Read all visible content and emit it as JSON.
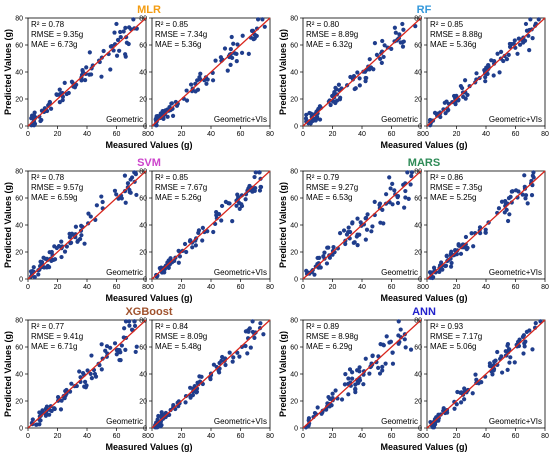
{
  "colors": {
    "point": "#1f3d8c",
    "fit_line": "#d9261c",
    "title_MLR": "#f39c12",
    "title_RF": "#3498db",
    "title_SVM": "#cc44cc",
    "title_MARS": "#2e8b57",
    "title_XGBoost": "#a0522d",
    "title_ANN": "#2222cc"
  },
  "chart_data": [
    {
      "type": "scatter",
      "model": "MLR",
      "title": "MLR",
      "variant": "Geometric",
      "r2_label": "R² = 0.78",
      "rmse_label": "RMSE = 9.35g",
      "mae_label": "MAE = 6.73g",
      "xlabel": "Measured Values (g)",
      "ylabel": "Predicted Values (g)",
      "xlim": [
        0,
        80
      ],
      "ylim": [
        0,
        80
      ],
      "xticks": [
        0,
        20,
        40,
        60,
        80
      ],
      "yticks": [
        0,
        20,
        40,
        60,
        80
      ],
      "seed": 11
    },
    {
      "type": "scatter",
      "model": "MLR",
      "title": "",
      "variant": "Geometric+VIs",
      "r2_label": "R² = 0.85",
      "rmse_label": "RMSE = 7.34g",
      "mae_label": "MAE = 5.36g",
      "xlabel": "",
      "ylabel": "",
      "xlim": [
        0,
        80
      ],
      "ylim": [
        0,
        80
      ],
      "xticks": [
        0,
        20,
        40,
        60,
        80
      ],
      "yticks": [
        0,
        20,
        40,
        60,
        80
      ],
      "seed": 12
    },
    {
      "type": "scatter",
      "model": "RF",
      "title": "RF",
      "variant": "Geometric",
      "r2_label": "R² = 0.80",
      "rmse_label": "RMSE = 8.89g",
      "mae_label": "MAE = 6.32g",
      "xlabel": "Measured Values (g)",
      "ylabel": "Predicted Values (g)",
      "xlim": [
        0,
        80
      ],
      "ylim": [
        0,
        80
      ],
      "xticks": [
        0,
        20,
        40,
        60,
        80
      ],
      "yticks": [
        0,
        20,
        40,
        60,
        80
      ],
      "seed": 21
    },
    {
      "type": "scatter",
      "model": "RF",
      "title": "",
      "variant": "Geometric+VIs",
      "r2_label": "R² = 0.85",
      "rmse_label": "RMSE = 8.88g",
      "mae_label": "MAE = 5.36g",
      "xlabel": "",
      "ylabel": "",
      "xlim": [
        0,
        80
      ],
      "ylim": [
        0,
        80
      ],
      "xticks": [
        0,
        20,
        40,
        60,
        80
      ],
      "yticks": [
        0,
        20,
        40,
        60,
        80
      ],
      "seed": 22
    },
    {
      "type": "scatter",
      "model": "SVM",
      "title": "SVM",
      "variant": "Geometric",
      "r2_label": "R² = 0.78",
      "rmse_label": "RMSE = 9.57g",
      "mae_label": "MAE = 6.59g",
      "xlabel": "Measured Values (g)",
      "ylabel": "Predicted Values (g)",
      "xlim": [
        0,
        80
      ],
      "ylim": [
        0,
        80
      ],
      "xticks": [
        0,
        20,
        40,
        60,
        80
      ],
      "yticks": [
        0,
        20,
        40,
        60,
        80
      ],
      "seed": 31
    },
    {
      "type": "scatter",
      "model": "SVM",
      "title": "",
      "variant": "Geometric+VIs",
      "r2_label": "R² = 0.85",
      "rmse_label": "RMSE = 7.67g",
      "mae_label": "MAE = 5.26g",
      "xlabel": "",
      "ylabel": "",
      "xlim": [
        0,
        80
      ],
      "ylim": [
        0,
        80
      ],
      "xticks": [
        0,
        20,
        40,
        60,
        80
      ],
      "yticks": [
        0,
        20,
        40,
        60,
        80
      ],
      "seed": 32
    },
    {
      "type": "scatter",
      "model": "MARS",
      "title": "MARS",
      "variant": "Geometric",
      "r2_label": "R² = 0.79",
      "rmse_label": "RMSE = 9.27g",
      "mae_label": "MAE = 6.53g",
      "xlabel": "Measured Values (g)",
      "ylabel": "Predicted Values (g)",
      "xlim": [
        0,
        80
      ],
      "ylim": [
        0,
        80
      ],
      "xticks": [
        0,
        20,
        40,
        60,
        80
      ],
      "yticks": [
        0,
        20,
        40,
        60,
        80
      ],
      "seed": 41
    },
    {
      "type": "scatter",
      "model": "MARS",
      "title": "",
      "variant": "Geometric+VIs",
      "r2_label": "R² = 0.86",
      "rmse_label": "RMSE = 7.35g",
      "mae_label": "MAE = 5.25g",
      "xlabel": "",
      "ylabel": "",
      "xlim": [
        0,
        80
      ],
      "ylim": [
        0,
        80
      ],
      "xticks": [
        0,
        20,
        40,
        60,
        80
      ],
      "yticks": [
        0,
        20,
        40,
        60,
        80
      ],
      "seed": 42
    },
    {
      "type": "scatter",
      "model": "XGBoost",
      "title": "XGBoost",
      "variant": "Geometric",
      "r2_label": "R² = 0.77",
      "rmse_label": "RMSE = 9.41g",
      "mae_label": "MAE = 6.71g",
      "xlabel": "Measured Values (g)",
      "ylabel": "Predicted Values (g)",
      "xlim": [
        0,
        80
      ],
      "ylim": [
        0,
        80
      ],
      "xticks": [
        0,
        20,
        40,
        60,
        80
      ],
      "yticks": [
        0,
        20,
        40,
        60,
        80
      ],
      "seed": 51
    },
    {
      "type": "scatter",
      "model": "XGBoost",
      "title": "",
      "variant": "Geometric+VIs",
      "r2_label": "R² = 0.84",
      "rmse_label": "RMSE = 8.09g",
      "mae_label": "MAE = 5.48g",
      "xlabel": "",
      "ylabel": "",
      "xlim": [
        0,
        80
      ],
      "ylim": [
        0,
        80
      ],
      "xticks": [
        0,
        20,
        40,
        60,
        80
      ],
      "yticks": [
        0,
        20,
        40,
        60,
        80
      ],
      "seed": 52
    },
    {
      "type": "scatter",
      "model": "ANN",
      "title": "ANN",
      "variant": "Geometric",
      "r2_label": "R² = 0.89",
      "rmse_label": "RMSE = 8.98g",
      "mae_label": "MAE = 6.29g",
      "xlabel": "Measured Values (g)",
      "ylabel": "Predicted Values (g)",
      "xlim": [
        0,
        80
      ],
      "ylim": [
        0,
        80
      ],
      "xticks": [
        0,
        20,
        40,
        60,
        80
      ],
      "yticks": [
        0,
        20,
        40,
        60,
        80
      ],
      "seed": 61
    },
    {
      "type": "scatter",
      "model": "ANN",
      "title": "",
      "variant": "Geometric+VIs",
      "r2_label": "R² = 0.93",
      "rmse_label": "RMSE = 7.17g",
      "mae_label": "MAE = 5.06g",
      "xlabel": "",
      "ylabel": "",
      "xlim": [
        0,
        80
      ],
      "ylim": [
        0,
        80
      ],
      "xticks": [
        0,
        20,
        40,
        60,
        80
      ],
      "yticks": [
        0,
        20,
        40,
        60,
        80
      ],
      "seed": 62
    }
  ]
}
